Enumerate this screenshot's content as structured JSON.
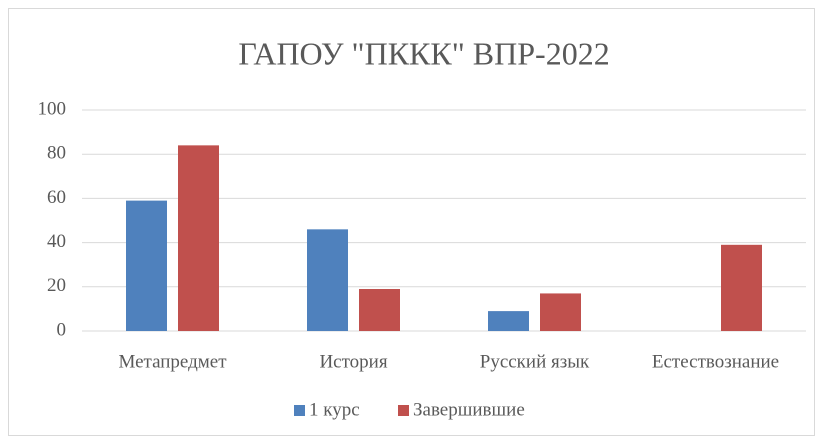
{
  "chart_data": {
    "type": "bar",
    "title": "ГАПОУ \"ПККК\" ВПР-2022",
    "categories": [
      "Метапредмет",
      "История",
      "Русский язык",
      "Естествознание"
    ],
    "series": [
      {
        "name": "1 курс",
        "color": "#4f81bd",
        "values": [
          59,
          46,
          9,
          null
        ]
      },
      {
        "name": "Завершившие",
        "color": "#c0504d",
        "values": [
          84,
          19,
          17,
          39
        ]
      }
    ],
    "ylim": [
      0,
      100
    ],
    "yticks": [
      0,
      20,
      40,
      60,
      80,
      100
    ],
    "grid": true,
    "legend": "bottom"
  }
}
